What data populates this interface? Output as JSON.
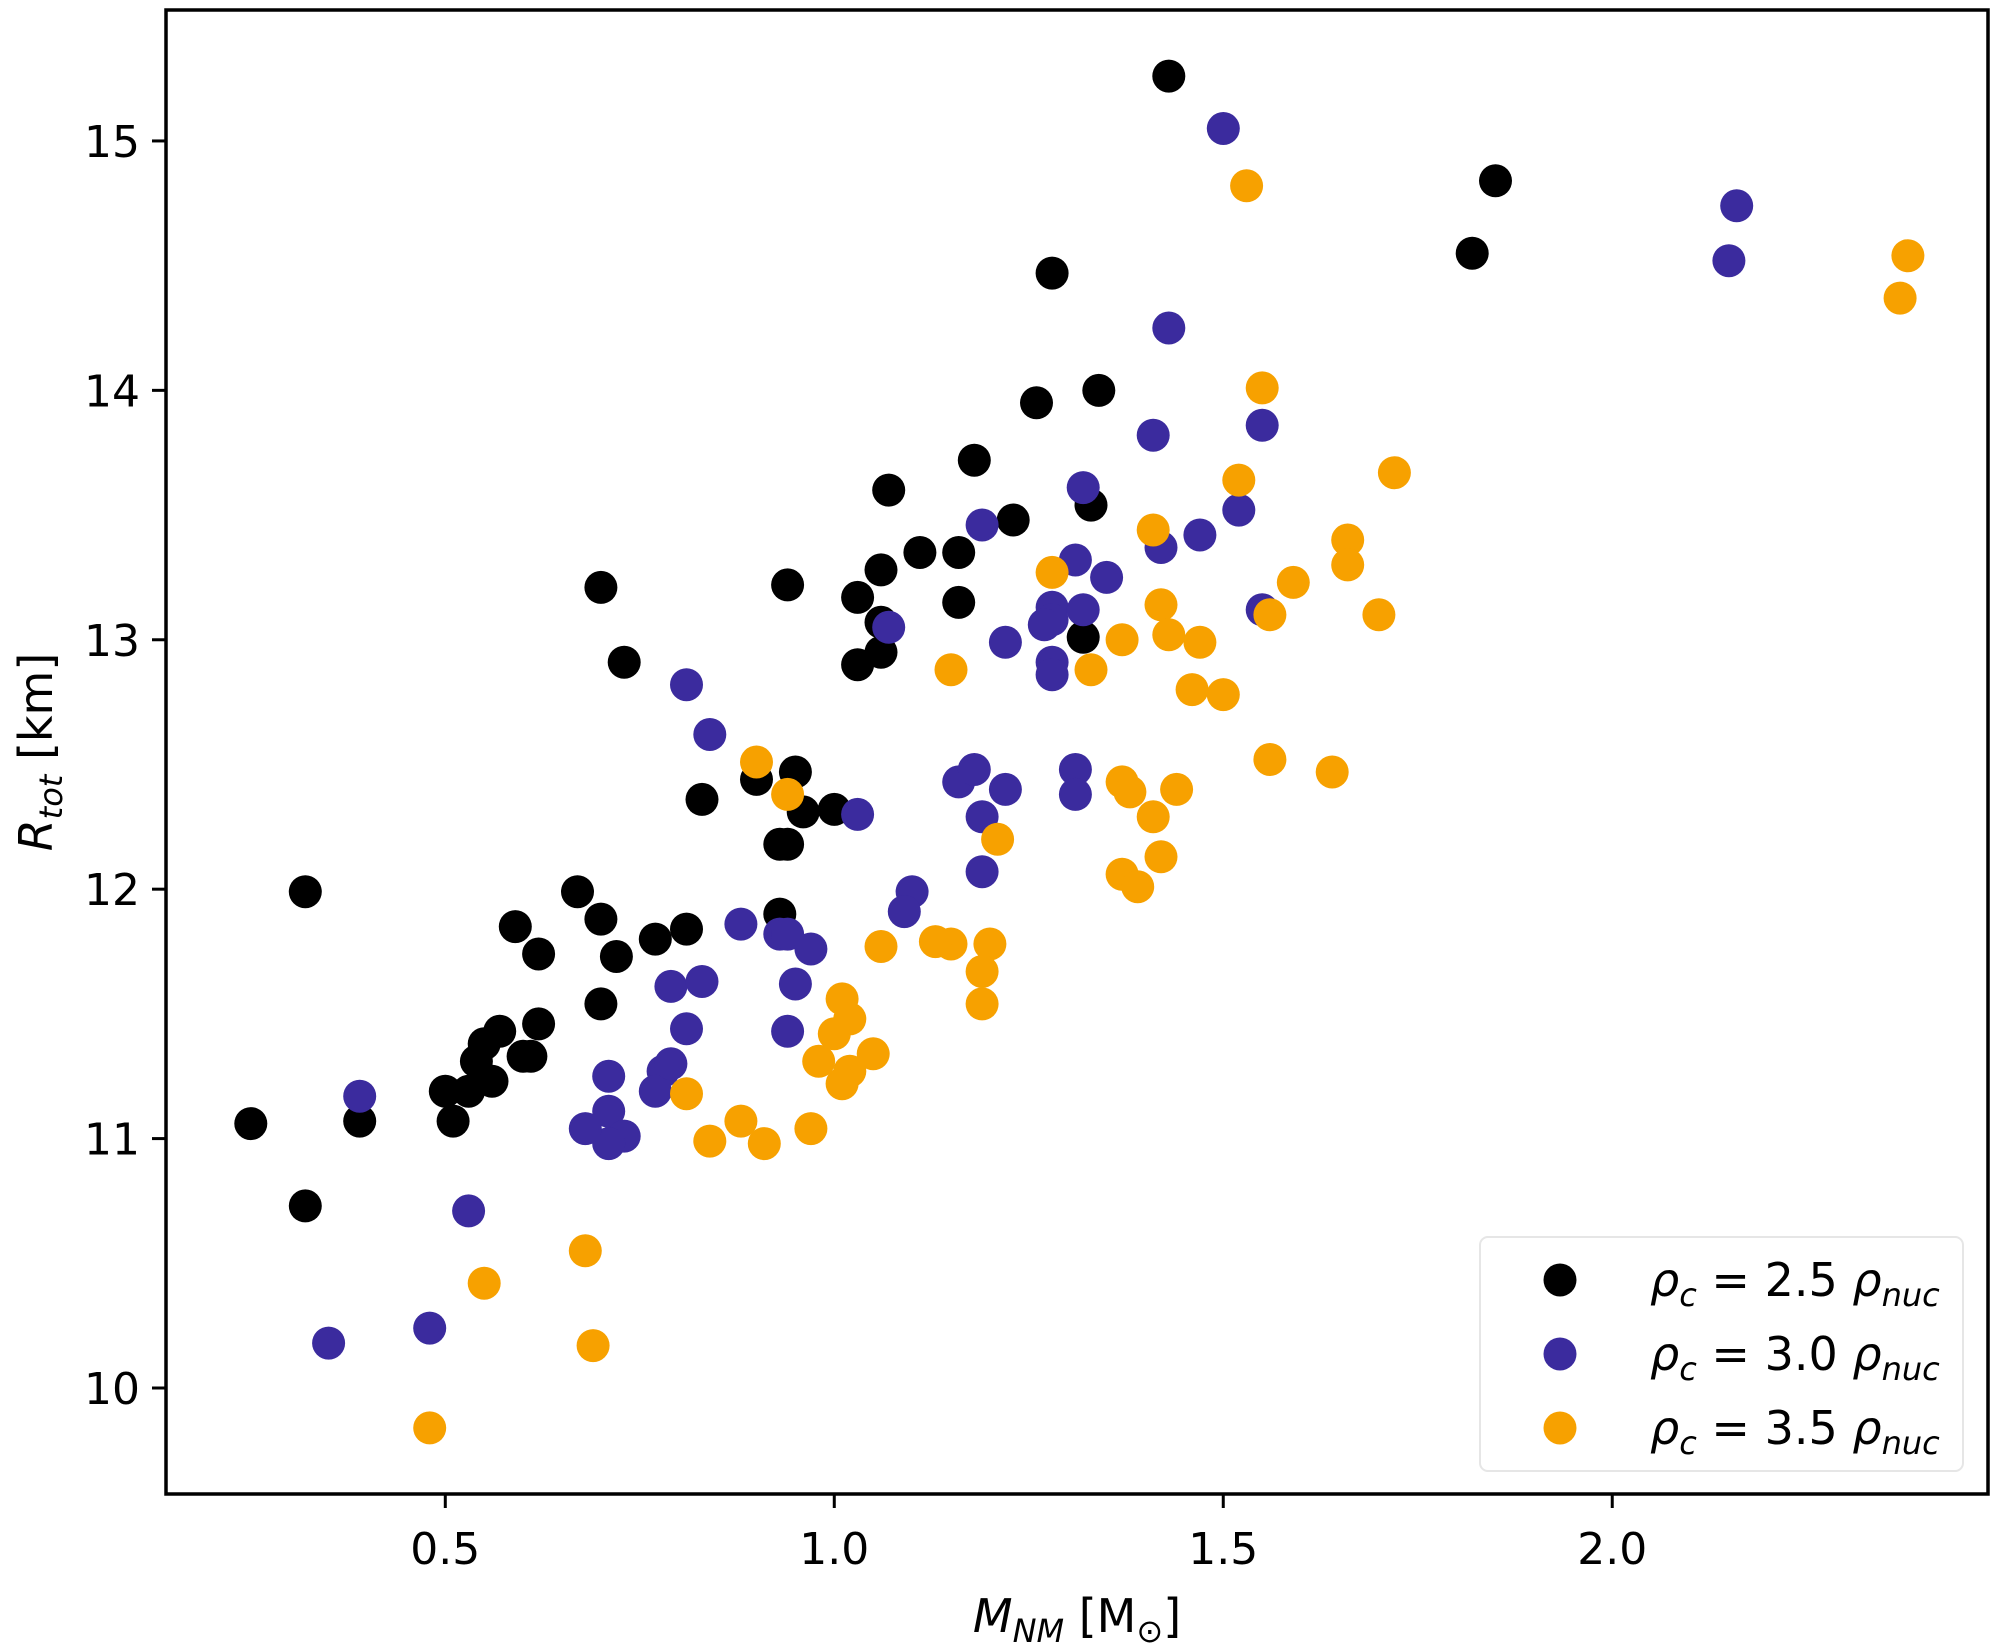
{
  "chart_data": {
    "type": "scatter",
    "title": "",
    "xlabel": "M_NM [M_⊙]",
    "ylabel": "R_tot [km]",
    "xlabel_parts": {
      "main": "M",
      "sub": "NM",
      "unit": " [M",
      "unit_sub": "⊙",
      "close": "]"
    },
    "ylabel_parts": {
      "main": "R",
      "sub": "tot",
      "unit": " [km]"
    },
    "xlim": [
      0.141,
      2.483
    ],
    "ylim": [
      9.575,
      15.525
    ],
    "xticks": [
      0.5,
      1.0,
      1.5,
      2.0
    ],
    "xtick_labels": [
      "0.5",
      "1.0",
      "1.5",
      "2.0"
    ],
    "yticks": [
      10,
      11,
      12,
      13,
      14,
      15
    ],
    "ytick_labels": [
      "10",
      "11",
      "12",
      "13",
      "14",
      "15"
    ],
    "grid": false,
    "legend_position": "lower-right",
    "series": [
      {
        "name": "ρc = 2.5 ρnuc",
        "label_parts": {
          "rho": "ρ",
          "c": "c",
          "eq": " = 2.5 ",
          "rho2": "ρ",
          "nuc": "nuc"
        },
        "color": "#000000",
        "points": [
          [
            1.43,
            15.26
          ],
          [
            1.85,
            14.84
          ],
          [
            1.82,
            14.55
          ],
          [
            1.28,
            14.47
          ],
          [
            1.34,
            14.0
          ],
          [
            1.26,
            13.95
          ],
          [
            1.18,
            13.72
          ],
          [
            1.07,
            13.6
          ],
          [
            1.23,
            13.48
          ],
          [
            1.33,
            13.54
          ],
          [
            1.11,
            13.35
          ],
          [
            1.16,
            13.35
          ],
          [
            1.06,
            13.28
          ],
          [
            1.03,
            13.17
          ],
          [
            1.16,
            13.15
          ],
          [
            1.06,
            13.07
          ],
          [
            1.06,
            12.95
          ],
          [
            1.03,
            12.9
          ],
          [
            1.32,
            13.01
          ],
          [
            0.94,
            13.22
          ],
          [
            0.7,
            13.21
          ],
          [
            0.73,
            12.91
          ],
          [
            0.9,
            12.44
          ],
          [
            0.95,
            12.47
          ],
          [
            0.83,
            12.36
          ],
          [
            1.0,
            12.32
          ],
          [
            0.96,
            12.31
          ],
          [
            0.93,
            12.18
          ],
          [
            0.94,
            12.18
          ],
          [
            0.32,
            11.99
          ],
          [
            0.67,
            11.99
          ],
          [
            0.59,
            11.85
          ],
          [
            0.62,
            11.74
          ],
          [
            0.7,
            11.88
          ],
          [
            0.72,
            11.73
          ],
          [
            0.77,
            11.8
          ],
          [
            0.81,
            11.84
          ],
          [
            0.93,
            11.9
          ],
          [
            0.7,
            11.54
          ],
          [
            0.62,
            11.46
          ],
          [
            0.57,
            11.43
          ],
          [
            0.55,
            11.38
          ],
          [
            0.54,
            11.31
          ],
          [
            0.56,
            11.23
          ],
          [
            0.53,
            11.19
          ],
          [
            0.61,
            11.33
          ],
          [
            0.6,
            11.33
          ],
          [
            0.5,
            11.19
          ],
          [
            0.51,
            11.07
          ],
          [
            0.39,
            11.07
          ],
          [
            0.25,
            11.06
          ],
          [
            0.32,
            10.73
          ]
        ]
      },
      {
        "name": "ρc = 3.0 ρnuc",
        "label_parts": {
          "rho": "ρ",
          "c": "c",
          "eq": " = 3.0 ",
          "rho2": "ρ",
          "nuc": "nuc"
        },
        "color": "#3b2b9e",
        "points": [
          [
            1.5,
            15.05
          ],
          [
            2.16,
            14.74
          ],
          [
            2.15,
            14.52
          ],
          [
            1.43,
            14.25
          ],
          [
            1.41,
            13.82
          ],
          [
            1.55,
            13.86
          ],
          [
            1.32,
            13.61
          ],
          [
            1.19,
            13.46
          ],
          [
            1.52,
            13.52
          ],
          [
            1.47,
            13.42
          ],
          [
            1.42,
            13.37
          ],
          [
            1.31,
            13.32
          ],
          [
            1.35,
            13.25
          ],
          [
            1.28,
            13.13
          ],
          [
            1.28,
            13.08
          ],
          [
            1.32,
            13.12
          ],
          [
            1.27,
            13.06
          ],
          [
            1.07,
            13.05
          ],
          [
            1.22,
            12.99
          ],
          [
            1.28,
            12.91
          ],
          [
            1.28,
            12.86
          ],
          [
            1.55,
            13.12
          ],
          [
            0.81,
            12.82
          ],
          [
            0.84,
            12.62
          ],
          [
            1.31,
            12.48
          ],
          [
            1.31,
            12.38
          ],
          [
            1.16,
            12.43
          ],
          [
            1.18,
            12.48
          ],
          [
            1.22,
            12.4
          ],
          [
            1.19,
            12.29
          ],
          [
            1.03,
            12.3
          ],
          [
            1.19,
            12.07
          ],
          [
            1.1,
            11.99
          ],
          [
            1.09,
            11.91
          ],
          [
            0.88,
            11.86
          ],
          [
            0.93,
            11.82
          ],
          [
            0.94,
            11.82
          ],
          [
            0.97,
            11.76
          ],
          [
            0.95,
            11.62
          ],
          [
            0.79,
            11.61
          ],
          [
            0.83,
            11.63
          ],
          [
            0.81,
            11.44
          ],
          [
            0.94,
            11.43
          ],
          [
            0.78,
            11.27
          ],
          [
            0.77,
            11.19
          ],
          [
            0.79,
            11.3
          ],
          [
            0.71,
            11.25
          ],
          [
            0.71,
            11.11
          ],
          [
            0.73,
            11.01
          ],
          [
            0.71,
            10.98
          ],
          [
            0.68,
            11.04
          ],
          [
            0.39,
            11.17
          ],
          [
            0.53,
            10.71
          ],
          [
            0.48,
            10.24
          ],
          [
            0.35,
            10.18
          ]
        ]
      },
      {
        "name": "ρc = 3.5 ρnuc",
        "label_parts": {
          "rho": "ρ",
          "c": "c",
          "eq": " = 3.5 ",
          "rho2": "ρ",
          "nuc": "nuc"
        },
        "color": "#f7a100",
        "points": [
          [
            1.53,
            14.82
          ],
          [
            1.55,
            14.01
          ],
          [
            2.37,
            14.37
          ],
          [
            2.38,
            14.54
          ],
          [
            1.72,
            13.67
          ],
          [
            1.52,
            13.64
          ],
          [
            1.41,
            13.44
          ],
          [
            1.28,
            13.27
          ],
          [
            1.66,
            13.4
          ],
          [
            1.66,
            13.3
          ],
          [
            1.59,
            13.23
          ],
          [
            1.7,
            13.1
          ],
          [
            1.56,
            13.1
          ],
          [
            1.42,
            13.14
          ],
          [
            1.43,
            13.02
          ],
          [
            1.37,
            13.0
          ],
          [
            1.47,
            12.99
          ],
          [
            1.33,
            12.88
          ],
          [
            1.15,
            12.88
          ],
          [
            1.46,
            12.8
          ],
          [
            1.5,
            12.78
          ],
          [
            1.56,
            12.52
          ],
          [
            1.64,
            12.47
          ],
          [
            0.9,
            12.51
          ],
          [
            0.94,
            12.38
          ],
          [
            1.44,
            12.4
          ],
          [
            1.37,
            12.43
          ],
          [
            1.38,
            12.39
          ],
          [
            1.41,
            12.29
          ],
          [
            1.42,
            12.13
          ],
          [
            1.21,
            12.2
          ],
          [
            1.37,
            12.06
          ],
          [
            1.39,
            12.01
          ],
          [
            1.06,
            11.77
          ],
          [
            1.15,
            11.78
          ],
          [
            1.13,
            11.79
          ],
          [
            1.2,
            11.78
          ],
          [
            1.19,
            11.67
          ],
          [
            1.19,
            11.54
          ],
          [
            1.01,
            11.56
          ],
          [
            1.02,
            11.48
          ],
          [
            1.0,
            11.42
          ],
          [
            0.98,
            11.31
          ],
          [
            1.05,
            11.34
          ],
          [
            1.02,
            11.27
          ],
          [
            1.01,
            11.22
          ],
          [
            0.81,
            11.18
          ],
          [
            0.88,
            11.07
          ],
          [
            0.91,
            10.98
          ],
          [
            0.84,
            10.99
          ],
          [
            0.97,
            11.04
          ],
          [
            0.68,
            10.55
          ],
          [
            0.55,
            10.42
          ],
          [
            0.69,
            10.17
          ],
          [
            0.48,
            9.84
          ]
        ]
      }
    ]
  }
}
